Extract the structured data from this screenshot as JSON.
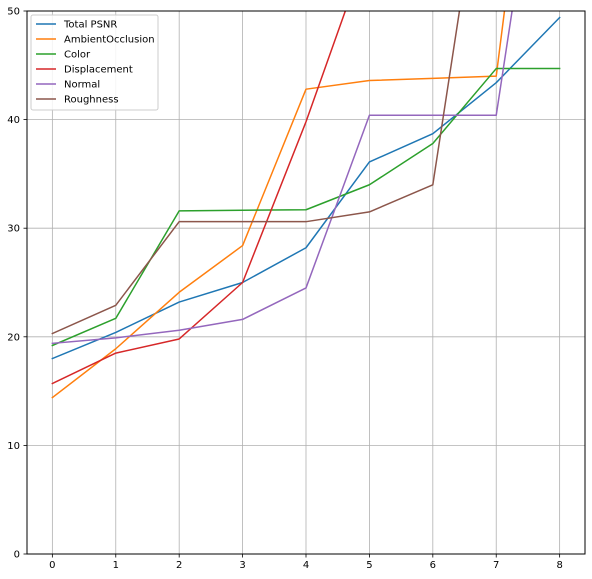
{
  "chart_data": {
    "type": "line",
    "title": "",
    "xlabel": "",
    "ylabel": "",
    "xlim": [
      -0.4,
      8.4
    ],
    "ylim": [
      0,
      50
    ],
    "x": [
      0,
      1,
      2,
      3,
      4,
      5,
      6,
      7,
      8
    ],
    "xticks": [
      "0",
      "1",
      "2",
      "3",
      "4",
      "5",
      "6",
      "7",
      "8"
    ],
    "yticks": [
      "0",
      "10",
      "20",
      "30",
      "40",
      "50"
    ],
    "grid": true,
    "legend_position": "upper-left",
    "series": [
      {
        "name": "Total PSNR",
        "color": "#1f77b4",
        "x": [
          0,
          1,
          2,
          3,
          4,
          5,
          6,
          7,
          8
        ],
        "values": [
          18.0,
          20.4,
          23.2,
          25.0,
          28.2,
          36.1,
          38.7,
          43.4,
          49.4
        ]
      },
      {
        "name": "AmbientOcclusion",
        "color": "#ff7f0e",
        "x": [
          0,
          1,
          2,
          3,
          4,
          5,
          6,
          7,
          7.13
        ],
        "values": [
          14.4,
          18.9,
          24.1,
          28.4,
          42.8,
          43.6,
          43.8,
          44.0,
          50.0
        ]
      },
      {
        "name": "Color",
        "color": "#2ca02c",
        "x": [
          0,
          1,
          2,
          3,
          4,
          5,
          6,
          7,
          8
        ],
        "values": [
          19.2,
          21.7,
          31.6,
          31.65,
          31.7,
          34.0,
          37.8,
          44.7,
          44.7
        ]
      },
      {
        "name": "Displacement",
        "color": "#d62728",
        "x": [
          0,
          1,
          2,
          3,
          4,
          4.62
        ],
        "values": [
          15.7,
          18.5,
          19.8,
          25.0,
          39.8,
          50.0
        ]
      },
      {
        "name": "Normal",
        "color": "#9467bd",
        "x": [
          0,
          1,
          2,
          3,
          4,
          5,
          6,
          7,
          7.25
        ],
        "values": [
          19.4,
          19.9,
          20.6,
          21.6,
          24.5,
          40.4,
          40.4,
          40.4,
          50.0
        ]
      },
      {
        "name": "Roughness",
        "color": "#8c564b",
        "x": [
          0,
          1,
          2,
          3,
          4,
          5,
          6,
          6.42
        ],
        "values": [
          20.3,
          22.9,
          30.6,
          30.6,
          30.6,
          31.5,
          34.0,
          50.0
        ]
      }
    ]
  }
}
